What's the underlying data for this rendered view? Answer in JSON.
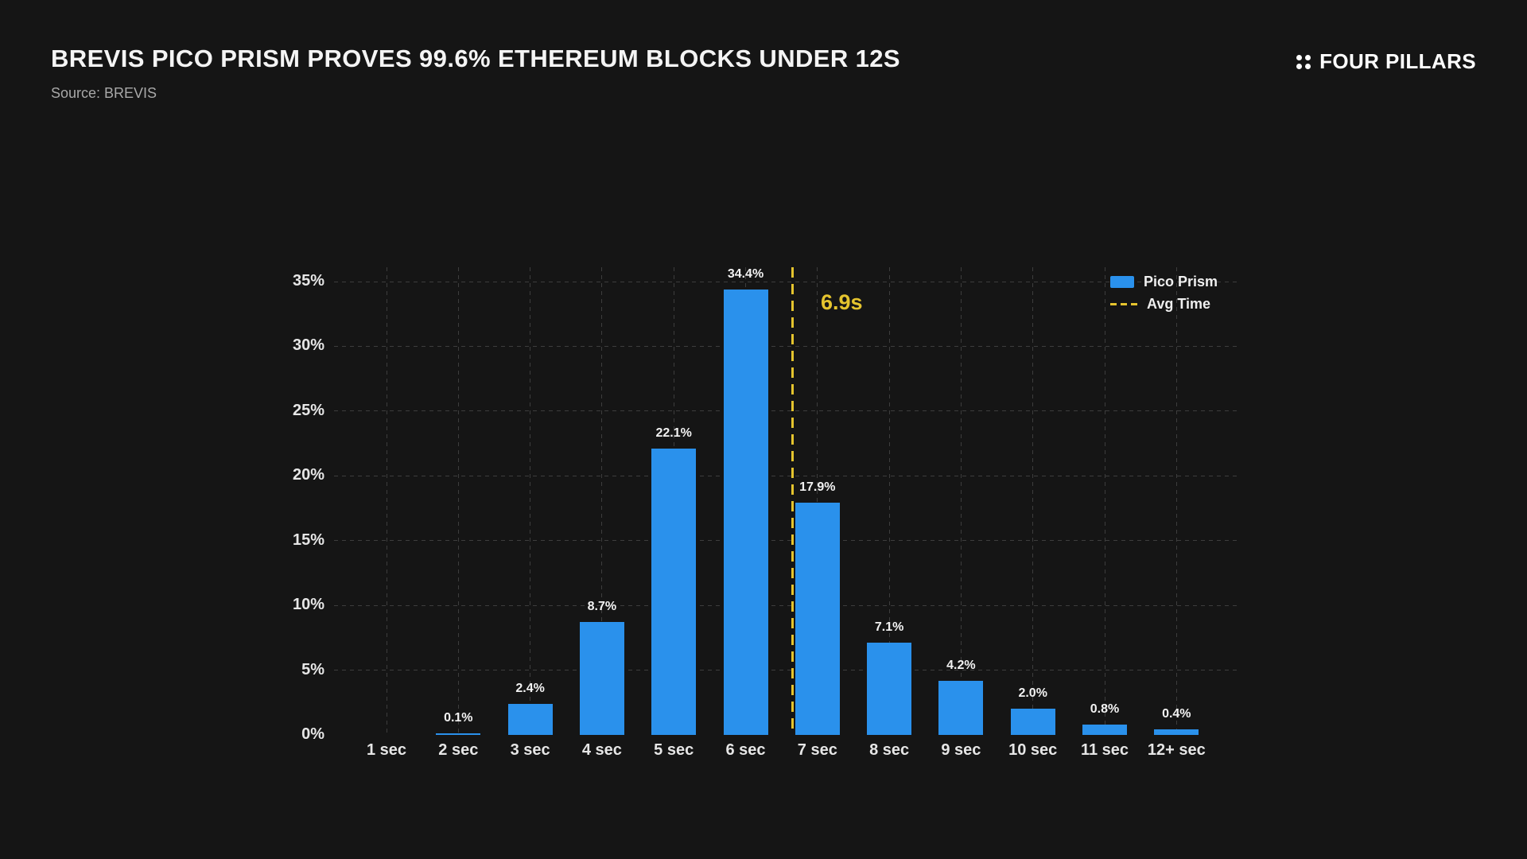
{
  "header": {
    "title": "BREVIS PICO PRISM PROVES 99.6% ETHEREUM BLOCKS UNDER 12S",
    "source": "Source: BREVIS",
    "brand": "FOUR PILLARS"
  },
  "colors": {
    "background": "#151515",
    "bar_blue": "#2A91EC",
    "accent_yellow": "#E5C42E",
    "gridline": "#3D3D3D",
    "text_primary": "#F4F4F4",
    "text_secondary": "#A8A8A8"
  },
  "icons": {
    "brand_logo": "four-dots-grid-icon"
  },
  "chart_data": {
    "type": "bar",
    "title": "BREVIS PICO PRISM PROVES 99.6% ETHEREUM BLOCKS UNDER 12S",
    "xlabel": "",
    "ylabel": "",
    "categories": [
      "1 sec",
      "2 sec",
      "3 sec",
      "4 sec",
      "5 sec",
      "6 sec",
      "7 sec",
      "8 sec",
      "9 sec",
      "10 sec",
      "11 sec",
      "12+ sec"
    ],
    "values": [
      0,
      0.1,
      2.4,
      8.7,
      22.1,
      34.4,
      17.9,
      7.1,
      4.2,
      2.0,
      0.8,
      0.4
    ],
    "value_labels": [
      "",
      "0.1%",
      "2.4%",
      "8.7%",
      "22.1%",
      "34.4%",
      "17.9%",
      "7.1%",
      "4.2%",
      "2.0%",
      "0.8%",
      "0.4%"
    ],
    "ylim": [
      0,
      35
    ],
    "yticks": [
      0,
      5,
      10,
      15,
      20,
      25,
      30,
      35
    ],
    "ytick_suffix": "%",
    "grid": true,
    "avg_line": {
      "label": "6.9s",
      "value_seconds": 6.9,
      "position_fraction": 0.506
    },
    "legend_position": "top-right",
    "legend": [
      {
        "label": "Pico Prism",
        "type": "bar"
      },
      {
        "label": "Avg Time",
        "type": "dashed-line"
      }
    ]
  }
}
